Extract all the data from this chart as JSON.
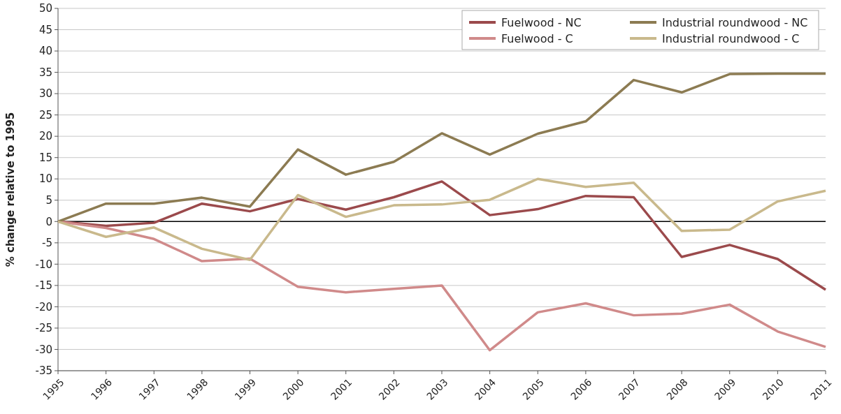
{
  "chart_data": {
    "type": "line",
    "ylabel": "% change relative to 1995",
    "categories": [
      "1995",
      "1996",
      "1997",
      "1998",
      "1999",
      "2000",
      "2001",
      "2002",
      "2003",
      "2004",
      "2005",
      "2006",
      "2007",
      "2008",
      "2009",
      "2010",
      "2011"
    ],
    "series": [
      {
        "name": "Fuelwood - NC",
        "color": "#9b4a4c",
        "values": [
          0,
          -1,
          -0.3,
          4.2,
          2.4,
          5.3,
          2.8,
          5.7,
          9.4,
          1.5,
          2.9,
          6,
          5.7,
          -8.3,
          -5.5,
          -8.8,
          -16
        ]
      },
      {
        "name": "Fuelwood - C",
        "color": "#d08a8a",
        "values": [
          0,
          -1.5,
          -4.1,
          -9.3,
          -8.7,
          -15.3,
          -16.6,
          -15.8,
          -15,
          -30.2,
          -21.3,
          -19.2,
          -22,
          -21.6,
          -19.5,
          -25.8,
          -29.4
        ]
      },
      {
        "name": "Industrial roundwood - NC",
        "color": "#8c7b52",
        "values": [
          0,
          4.2,
          4.2,
          5.6,
          3.5,
          16.9,
          11,
          14,
          20.7,
          15.7,
          20.6,
          23.5,
          33.2,
          30.3,
          34.6,
          34.7,
          34.7
        ]
      },
      {
        "name": "Industrial roundwood - C",
        "color": "#c9b98c",
        "values": [
          0,
          -3.6,
          -1.4,
          -6.4,
          -9,
          6.2,
          1.1,
          3.8,
          4,
          5.1,
          10,
          8.1,
          9.1,
          -2.2,
          -1.9,
          4.7,
          7.2
        ]
      }
    ],
    "ylim": [
      -35,
      50
    ],
    "yticks": [
      -35,
      -30,
      -25,
      -20,
      -15,
      -10,
      -5,
      0,
      5,
      10,
      15,
      20,
      25,
      30,
      35,
      40,
      45,
      50
    ],
    "grid": "y",
    "legend": "top right",
    "marker": "none",
    "line_style": "solid",
    "ref_lines": [
      {
        "axis": "y",
        "value": 0,
        "color": "#000000"
      }
    ]
  }
}
